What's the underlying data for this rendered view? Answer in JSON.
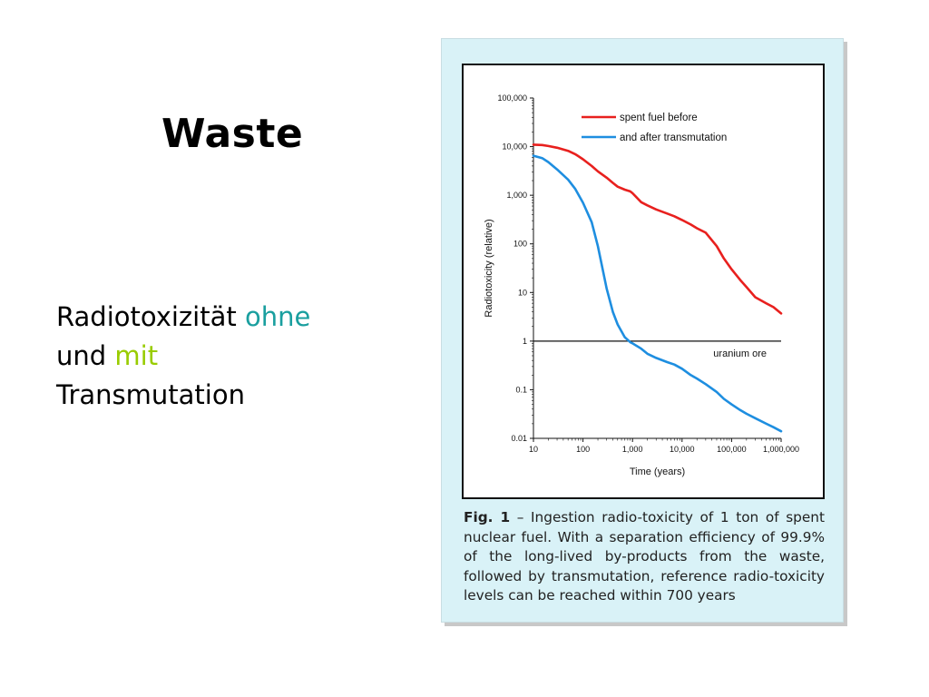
{
  "slide": {
    "title": "Waste",
    "subtitle_part1": "Radiotoxizität ",
    "subtitle_ohne": "ohne",
    "subtitle_part2": "und ",
    "subtitle_mit": "mit",
    "subtitle_part3": "Transmutation",
    "colors": {
      "ohne": "#1a9f9f",
      "mit": "#99cc00",
      "panel": "#d9f2f7"
    }
  },
  "caption": {
    "label": "Fig. 1",
    "text": " – Ingestion radio-toxicity of 1 ton of spent nuclear fuel. With a separation efficiency of 99.9% of the long-lived by-products from the waste, followed by transmutation, reference radio-toxicity levels can be reached within 700 years"
  },
  "chart_data": {
    "type": "line",
    "xlabel": "Time (years)",
    "ylabel": "Radiotoxicity (relative)",
    "xscale": "log",
    "yscale": "log",
    "xlim": [
      10,
      1000000
    ],
    "ylim": [
      0.01,
      100000
    ],
    "xticks": [
      10,
      100,
      1000,
      10000,
      100000,
      1000000
    ],
    "xtick_labels": [
      "10",
      "100",
      "1,000",
      "10,000",
      "100,000",
      "1,000,000"
    ],
    "yticks": [
      0.01,
      0.1,
      1,
      10,
      100,
      1000,
      10000,
      100000
    ],
    "ytick_labels": [
      "0.01",
      "0.1",
      "1",
      "10",
      "100",
      "1,000",
      "10,000",
      "100,000"
    ],
    "grid": false,
    "legend_position": "top-right",
    "series": [
      {
        "name": "spent fuel before",
        "color": "#e8201e",
        "x": [
          10,
          15,
          20,
          30,
          50,
          70,
          100,
          150,
          200,
          300,
          400,
          500,
          700,
          900,
          1000,
          1500,
          2000,
          3000,
          5000,
          7000,
          10000,
          15000,
          20000,
          30000,
          50000,
          70000,
          100000,
          150000,
          200000,
          300000,
          500000,
          700000,
          1000000
        ],
        "y": [
          11000,
          10800,
          10300,
          9500,
          8200,
          7000,
          5500,
          4000,
          3100,
          2300,
          1800,
          1500,
          1300,
          1200,
          1100,
          720,
          620,
          510,
          420,
          370,
          310,
          250,
          210,
          170,
          90,
          50,
          30,
          18,
          13,
          8,
          6,
          5,
          3.7
        ]
      },
      {
        "name": "and after transmutation",
        "color": "#1e8ee0",
        "x": [
          10,
          15,
          20,
          30,
          50,
          70,
          100,
          150,
          200,
          300,
          400,
          500,
          700,
          900,
          1000,
          1500,
          2000,
          3000,
          5000,
          7000,
          10000,
          15000,
          20000,
          30000,
          50000,
          70000,
          100000,
          150000,
          200000,
          300000,
          500000,
          700000,
          1000000
        ],
        "y": [
          6500,
          5800,
          4800,
          3400,
          2100,
          1350,
          700,
          280,
          90,
          12,
          4,
          2.2,
          1.2,
          0.95,
          0.9,
          0.7,
          0.55,
          0.45,
          0.37,
          0.33,
          0.27,
          0.2,
          0.17,
          0.13,
          0.09,
          0.065,
          0.05,
          0.038,
          0.032,
          0.026,
          0.02,
          0.017,
          0.014
        ]
      }
    ],
    "reference_lines": [
      {
        "y": 1,
        "label": "uranium ore"
      }
    ]
  }
}
